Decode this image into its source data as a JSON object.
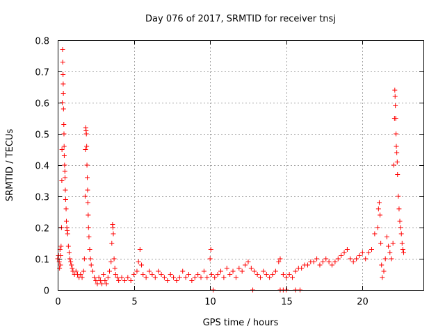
{
  "chart_data": {
    "type": "scatter",
    "title": "Day 076 of 2017, SRMTID for receiver tnsj",
    "xlabel": "GPS time / hours",
    "ylabel": "SRMTID / TECUs",
    "xlim": [
      0,
      24
    ],
    "ylim": [
      0,
      0.8
    ],
    "xticks": [
      0,
      5,
      10,
      15,
      20
    ],
    "yticks": [
      0,
      0.1,
      0.2,
      0.3,
      0.4,
      0.5,
      0.6,
      0.7,
      0.8
    ],
    "xtick_labels": [
      "0",
      "5",
      "10",
      "15",
      "20"
    ],
    "ytick_labels": [
      "0",
      "0.1",
      "0.2",
      "0.3",
      "0.4",
      "0.5",
      "0.6",
      "0.7",
      "0.8"
    ],
    "grid": true,
    "marker": "+",
    "color": "#ff0000",
    "series": [
      {
        "name": "SRMTID",
        "points": [
          [
            0.0,
            0.1
          ],
          [
            0.05,
            0.11
          ],
          [
            0.1,
            0.09
          ],
          [
            0.12,
            0.07
          ],
          [
            0.15,
            0.13
          ],
          [
            0.18,
            0.08
          ],
          [
            0.2,
            0.11
          ],
          [
            0.22,
            0.14
          ],
          [
            0.25,
            0.2
          ],
          [
            0.27,
            0.35
          ],
          [
            0.28,
            0.45
          ],
          [
            0.3,
            0.6
          ],
          [
            0.32,
            0.77
          ],
          [
            0.33,
            0.73
          ],
          [
            0.35,
            0.69
          ],
          [
            0.36,
            0.66
          ],
          [
            0.37,
            0.63
          ],
          [
            0.38,
            0.58
          ],
          [
            0.4,
            0.53
          ],
          [
            0.41,
            0.5
          ],
          [
            0.42,
            0.46
          ],
          [
            0.43,
            0.43
          ],
          [
            0.45,
            0.4
          ],
          [
            0.47,
            0.38
          ],
          [
            0.48,
            0.36
          ],
          [
            0.5,
            0.32
          ],
          [
            0.52,
            0.29
          ],
          [
            0.55,
            0.26
          ],
          [
            0.57,
            0.22
          ],
          [
            0.6,
            0.2
          ],
          [
            0.62,
            0.19
          ],
          [
            0.65,
            0.18
          ],
          [
            0.7,
            0.14
          ],
          [
            0.75,
            0.12
          ],
          [
            0.8,
            0.1
          ],
          [
            0.85,
            0.09
          ],
          [
            0.9,
            0.08
          ],
          [
            0.95,
            0.07
          ],
          [
            1.0,
            0.06
          ],
          [
            1.1,
            0.05
          ],
          [
            1.2,
            0.06
          ],
          [
            1.3,
            0.05
          ],
          [
            1.4,
            0.04
          ],
          [
            1.5,
            0.05
          ],
          [
            1.6,
            0.04
          ],
          [
            1.7,
            0.06
          ],
          [
            1.75,
            0.1
          ],
          [
            1.8,
            0.3
          ],
          [
            1.82,
            0.45
          ],
          [
            1.84,
            0.52
          ],
          [
            1.86,
            0.51
          ],
          [
            1.88,
            0.5
          ],
          [
            1.9,
            0.46
          ],
          [
            1.92,
            0.4
          ],
          [
            1.94,
            0.36
          ],
          [
            1.96,
            0.32
          ],
          [
            1.98,
            0.28
          ],
          [
            2.0,
            0.24
          ],
          [
            2.02,
            0.2
          ],
          [
            2.05,
            0.17
          ],
          [
            2.1,
            0.13
          ],
          [
            2.15,
            0.1
          ],
          [
            2.2,
            0.08
          ],
          [
            2.3,
            0.06
          ],
          [
            2.4,
            0.04
          ],
          [
            2.5,
            0.03
          ],
          [
            2.6,
            0.02
          ],
          [
            2.7,
            0.04
          ],
          [
            2.8,
            0.03
          ],
          [
            2.9,
            0.02
          ],
          [
            3.0,
            0.05
          ],
          [
            3.1,
            0.03
          ],
          [
            3.2,
            0.02
          ],
          [
            3.3,
            0.04
          ],
          [
            3.4,
            0.06
          ],
          [
            3.5,
            0.09
          ],
          [
            3.55,
            0.15
          ],
          [
            3.6,
            0.21
          ],
          [
            3.62,
            0.2
          ],
          [
            3.65,
            0.18
          ],
          [
            3.7,
            0.1
          ],
          [
            3.75,
            0.07
          ],
          [
            3.8,
            0.05
          ],
          [
            3.9,
            0.04
          ],
          [
            4.0,
            0.03
          ],
          [
            4.2,
            0.04
          ],
          [
            4.4,
            0.03
          ],
          [
            4.6,
            0.04
          ],
          [
            4.8,
            0.03
          ],
          [
            5.0,
            0.05
          ],
          [
            5.2,
            0.06
          ],
          [
            5.3,
            0.09
          ],
          [
            5.4,
            0.13
          ],
          [
            5.5,
            0.08
          ],
          [
            5.6,
            0.05
          ],
          [
            5.8,
            0.04
          ],
          [
            6.0,
            0.06
          ],
          [
            6.2,
            0.05
          ],
          [
            6.4,
            0.04
          ],
          [
            6.6,
            0.06
          ],
          [
            6.8,
            0.05
          ],
          [
            7.0,
            0.04
          ],
          [
            7.2,
            0.03
          ],
          [
            7.4,
            0.05
          ],
          [
            7.6,
            0.04
          ],
          [
            7.8,
            0.03
          ],
          [
            8.0,
            0.04
          ],
          [
            8.2,
            0.06
          ],
          [
            8.4,
            0.04
          ],
          [
            8.6,
            0.05
          ],
          [
            8.8,
            0.03
          ],
          [
            9.0,
            0.04
          ],
          [
            9.2,
            0.05
          ],
          [
            9.4,
            0.04
          ],
          [
            9.6,
            0.06
          ],
          [
            9.8,
            0.04
          ],
          [
            10.0,
            0.1
          ],
          [
            10.05,
            0.13
          ],
          [
            10.1,
            0.05
          ],
          [
            10.3,
            0.04
          ],
          [
            10.5,
            0.05
          ],
          [
            10.7,
            0.06
          ],
          [
            10.9,
            0.04
          ],
          [
            11.1,
            0.07
          ],
          [
            11.3,
            0.05
          ],
          [
            11.5,
            0.06
          ],
          [
            11.7,
            0.04
          ],
          [
            11.9,
            0.07
          ],
          [
            12.1,
            0.06
          ],
          [
            12.3,
            0.08
          ],
          [
            12.5,
            0.09
          ],
          [
            12.7,
            0.07
          ],
          [
            12.9,
            0.06
          ],
          [
            13.1,
            0.05
          ],
          [
            13.3,
            0.04
          ],
          [
            13.5,
            0.06
          ],
          [
            13.7,
            0.05
          ],
          [
            13.9,
            0.04
          ],
          [
            14.1,
            0.05
          ],
          [
            14.3,
            0.06
          ],
          [
            14.5,
            0.09
          ],
          [
            14.6,
            0.1
          ],
          [
            14.8,
            0.05
          ],
          [
            15.0,
            0.04
          ],
          [
            15.2,
            0.05
          ],
          [
            15.4,
            0.04
          ],
          [
            15.6,
            0.06
          ],
          [
            15.8,
            0.07
          ],
          [
            16.0,
            0.07
          ],
          [
            16.2,
            0.08
          ],
          [
            16.4,
            0.08
          ],
          [
            16.6,
            0.09
          ],
          [
            16.8,
            0.09
          ],
          [
            17.0,
            0.1
          ],
          [
            17.2,
            0.08
          ],
          [
            17.4,
            0.09
          ],
          [
            17.6,
            0.1
          ],
          [
            17.8,
            0.09
          ],
          [
            18.0,
            0.08
          ],
          [
            18.2,
            0.09
          ],
          [
            18.4,
            0.1
          ],
          [
            18.6,
            0.11
          ],
          [
            18.8,
            0.12
          ],
          [
            19.0,
            0.13
          ],
          [
            19.2,
            0.1
          ],
          [
            19.4,
            0.09
          ],
          [
            19.6,
            0.1
          ],
          [
            19.8,
            0.11
          ],
          [
            20.0,
            0.12
          ],
          [
            20.2,
            0.1
          ],
          [
            20.4,
            0.12
          ],
          [
            20.6,
            0.13
          ],
          [
            20.8,
            0.18
          ],
          [
            21.0,
            0.2
          ],
          [
            21.05,
            0.26
          ],
          [
            21.1,
            0.28
          ],
          [
            21.15,
            0.24
          ],
          [
            21.2,
            0.15
          ],
          [
            21.25,
            0.08
          ],
          [
            21.3,
            0.04
          ],
          [
            21.4,
            0.06
          ],
          [
            21.5,
            0.1
          ],
          [
            21.6,
            0.17
          ],
          [
            21.7,
            0.14
          ],
          [
            21.8,
            0.12
          ],
          [
            21.9,
            0.1
          ],
          [
            22.0,
            0.15
          ],
          [
            22.05,
            0.4
          ],
          [
            22.1,
            0.55
          ],
          [
            22.12,
            0.64
          ],
          [
            22.14,
            0.62
          ],
          [
            22.16,
            0.59
          ],
          [
            22.18,
            0.55
          ],
          [
            22.2,
            0.5
          ],
          [
            22.22,
            0.46
          ],
          [
            22.25,
            0.44
          ],
          [
            22.28,
            0.41
          ],
          [
            22.3,
            0.37
          ],
          [
            22.35,
            0.3
          ],
          [
            22.4,
            0.26
          ],
          [
            22.45,
            0.22
          ],
          [
            22.5,
            0.2
          ],
          [
            22.55,
            0.18
          ],
          [
            22.6,
            0.15
          ],
          [
            22.65,
            0.13
          ],
          [
            22.7,
            0.12
          ]
        ]
      }
    ],
    "zero_markers_x": [
      10.2,
      12.8,
      14.6,
      14.8,
      15.0,
      15.6,
      15.9
    ]
  }
}
